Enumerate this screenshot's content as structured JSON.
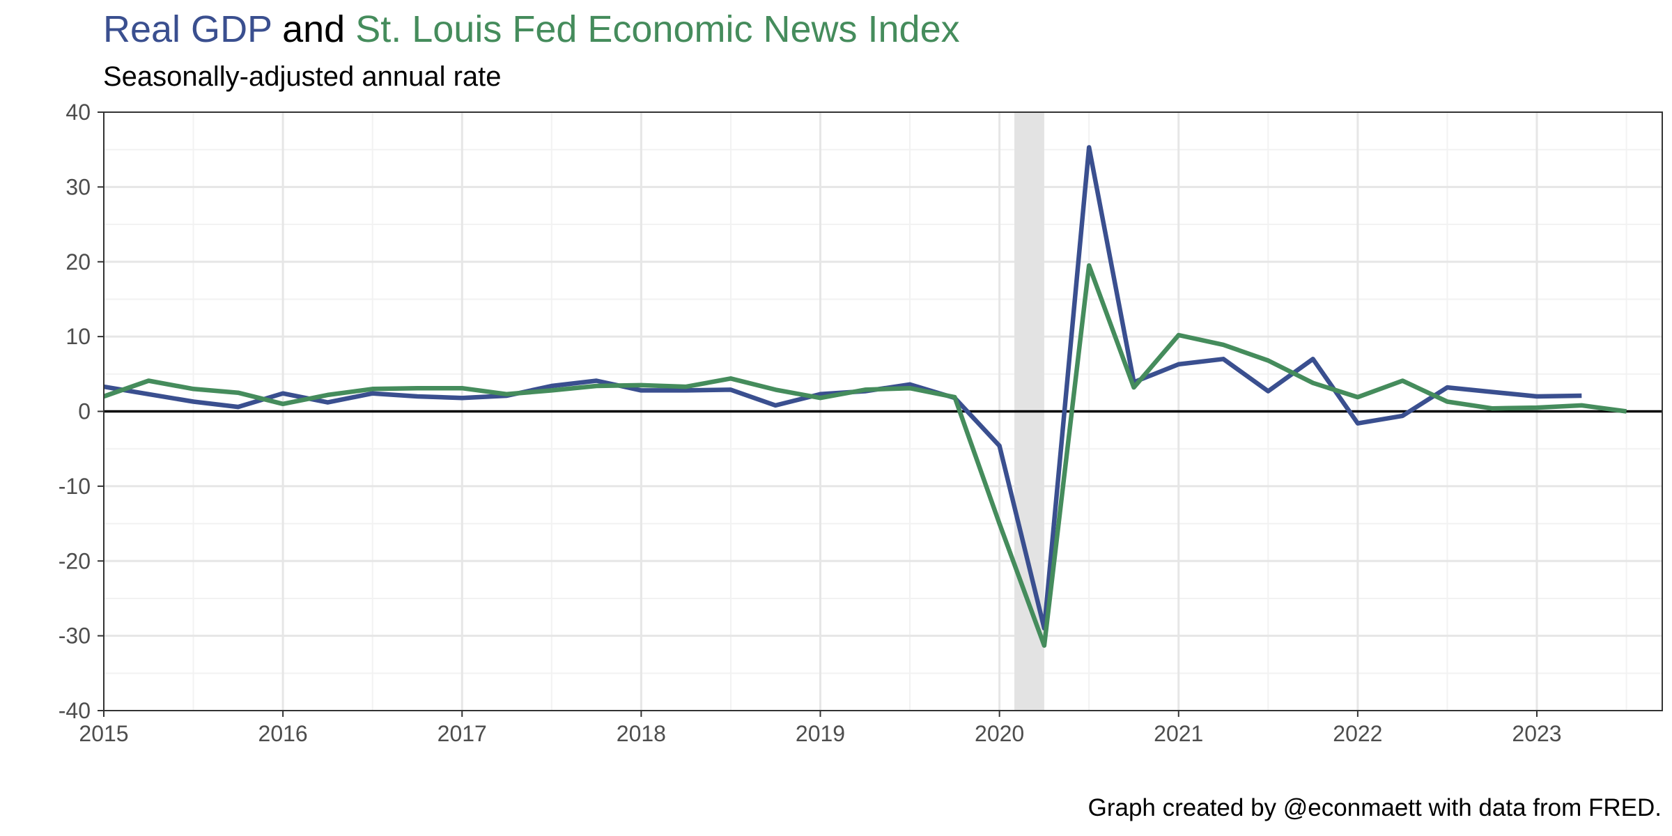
{
  "title": {
    "part1": "Real GDP",
    "part2": " and ",
    "part3": "St. Louis Fed Economic News Index"
  },
  "subtitle": "Seasonally-adjusted annual rate",
  "caption": "Graph created by @econmaett with data from FRED.",
  "colors": {
    "gdp": "#3a4f8f",
    "eni": "#458c5c",
    "recession_shade": "#e3e3e3",
    "grid_major": "#e6e6e6",
    "grid_minor": "#f2f2f2",
    "zero_line": "#000000"
  },
  "chart_data": {
    "type": "line",
    "title": "Real GDP and St. Louis Fed Economic News Index",
    "subtitle": "Seasonally-adjusted annual rate",
    "xlabel": "",
    "ylabel": "",
    "xlim": [
      2015.0,
      2023.7
    ],
    "ylim": [
      -40,
      40
    ],
    "x_ticks": [
      "2015",
      "2016",
      "2017",
      "2018",
      "2019",
      "2020",
      "2021",
      "2022",
      "2023"
    ],
    "y_ticks": [
      "40",
      "30",
      "20",
      "10",
      "0",
      "-10",
      "-20",
      "-30",
      "-40"
    ],
    "grid": true,
    "recession_shading": {
      "start": "2020-02",
      "end": "2020-04"
    },
    "series": [
      {
        "key": "gdp",
        "x": [
          "2015-01-01",
          "2015-04-01",
          "2015-07-01",
          "2015-10-01",
          "2016-01-01",
          "2016-04-01",
          "2016-07-01",
          "2016-10-01",
          "2017-01-01",
          "2017-04-01",
          "2017-07-01",
          "2017-10-01",
          "2018-01-01",
          "2018-04-01",
          "2018-07-01",
          "2018-10-01",
          "2019-01-01",
          "2019-04-01",
          "2019-07-01",
          "2019-10-01",
          "2020-01-01",
          "2020-04-01",
          "2020-07-01",
          "2020-10-01",
          "2021-01-01",
          "2021-04-01",
          "2021-07-01",
          "2021-10-01",
          "2022-01-01",
          "2022-04-01",
          "2022-07-01",
          "2022-10-01",
          "2023-01-01",
          "2023-04-01"
        ],
        "values": [
          3.3,
          2.3,
          1.3,
          0.6,
          2.4,
          1.2,
          2.4,
          2.0,
          1.8,
          2.1,
          3.4,
          4.1,
          2.8,
          2.8,
          2.9,
          0.8,
          2.3,
          2.7,
          3.6,
          1.8,
          -4.6,
          -29.0,
          35.3,
          3.9,
          6.3,
          7.0,
          2.7,
          7.0,
          -1.6,
          -0.6,
          3.2,
          2.6,
          2.0,
          2.1
        ]
      },
      {
        "key": "eni",
        "x": [
          "2015-01-01",
          "2015-04-01",
          "2015-07-01",
          "2015-10-01",
          "2016-01-01",
          "2016-04-01",
          "2016-07-01",
          "2016-10-01",
          "2017-01-01",
          "2017-04-01",
          "2017-07-01",
          "2017-10-01",
          "2018-01-01",
          "2018-04-01",
          "2018-07-01",
          "2018-10-01",
          "2019-01-01",
          "2019-04-01",
          "2019-07-01",
          "2019-10-01",
          "2020-01-01",
          "2020-04-01",
          "2020-07-01",
          "2020-10-01",
          "2021-01-01",
          "2021-04-01",
          "2021-07-01",
          "2021-10-01",
          "2022-01-01",
          "2022-04-01",
          "2022-07-01",
          "2022-10-01",
          "2023-01-01",
          "2023-04-01",
          "2023-07-01"
        ],
        "values": [
          2.0,
          4.1,
          3.0,
          2.5,
          1.0,
          2.2,
          3.0,
          3.1,
          3.1,
          2.3,
          2.8,
          3.4,
          3.5,
          3.3,
          4.4,
          2.9,
          1.8,
          2.9,
          3.1,
          1.9,
          -15.0,
          -31.3,
          19.5,
          3.2,
          10.2,
          8.9,
          6.8,
          3.8,
          1.9,
          4.1,
          1.3,
          0.4,
          0.5,
          0.8,
          0.0
        ]
      }
    ]
  }
}
